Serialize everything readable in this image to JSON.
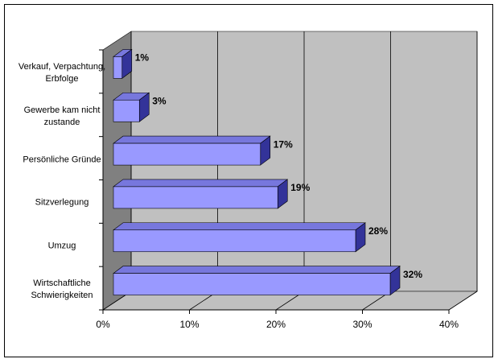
{
  "chart_data": {
    "type": "bar3d_horizontal",
    "categories": [
      "Verkauf, Verpachtung, Erbfolge",
      "Gewerbe kam nicht zustande",
      "Persönliche Gründe",
      "Sitzverlegung",
      "Umzug",
      "Wirtschaftliche Schwierigkeiten"
    ],
    "values": [
      1,
      3,
      17,
      19,
      28,
      32
    ],
    "value_labels": [
      "1%",
      "3%",
      "17%",
      "19%",
      "28%",
      "32%"
    ],
    "color": "#9999ff",
    "xlim": [
      0,
      40
    ],
    "xticks": [
      {
        "value": 0,
        "label": "0%"
      },
      {
        "value": 10,
        "label": "10%"
      },
      {
        "value": 20,
        "label": "20%"
      },
      {
        "value": 30,
        "label": "30%"
      },
      {
        "value": 40,
        "label": "40%"
      }
    ],
    "grid": true
  }
}
